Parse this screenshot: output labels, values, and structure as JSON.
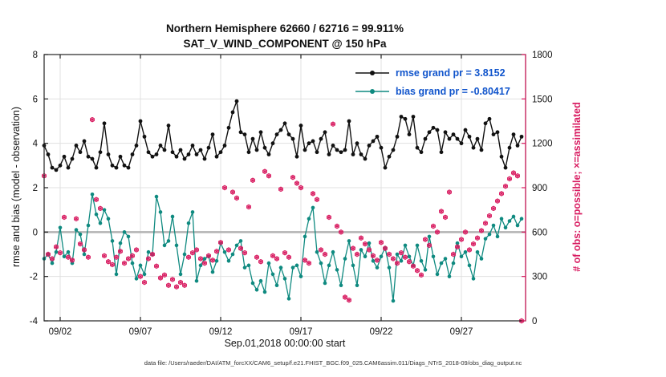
{
  "figure": {
    "title_line1": "Northern Hemisphere 62660 / 62716 = 99.911%",
    "title_line2": "SAT_V_WIND_COMPONENT @ 150 hPa",
    "xlabel": "Sep.01,2018 00:00:00 start",
    "ylabel_left": "rmse and bias (model - observation)",
    "ylabel_right": "# of obs: o=possible; ×=assimilated",
    "footer": "data file: /Users/raeder/DAI/ATM_forcXX/CAM6_setup/f.e21.FHIST_BGC.f09_025.CAM6assim.011/Diags_NTrS_2018-09/obs_diag_output.nc"
  },
  "legend": {
    "rmse_label": "rmse grand pr = 3.8152",
    "bias_label": "bias grand pr = -0.80417",
    "text_color": "#1155cc"
  },
  "colors": {
    "rmse": "#111111",
    "bias": "#0f8a80",
    "obs": "#d81b60",
    "grid": "#e0e0e0",
    "zero_line": "#b3b3b3",
    "axis": "#222222"
  },
  "chart_data": {
    "type": "line",
    "title": "Northern Hemisphere 62660 / 62716 = 99.911% | SAT_V_WIND_COMPONENT @ 150 hPa",
    "stats": {
      "possible": 62716,
      "assimilated": 62660,
      "percent_assimilated": 99.911,
      "rmse_grand_mean": 3.8152,
      "bias_grand_mean": -0.80417
    },
    "x_start": "Sep 1, 2018 00:00",
    "x_step_hours": 6,
    "x_axis": {
      "range_days": [
        0,
        30
      ],
      "tick_days": [
        1,
        6,
        11,
        16,
        21,
        26
      ],
      "tick_labels": [
        "09/02",
        "09/07",
        "09/12",
        "09/17",
        "09/22",
        "09/27"
      ]
    },
    "y_left": {
      "label": "rmse and bias (model - observation)",
      "range": [
        -4,
        8
      ],
      "ticks": [
        -4,
        -2,
        0,
        2,
        4,
        6,
        8
      ]
    },
    "y_right": {
      "label": "# of obs: o=possible; ×=assimilated",
      "range": [
        0,
        1800
      ],
      "ticks": [
        0,
        300,
        600,
        900,
        1200,
        1500,
        1800
      ]
    },
    "series": [
      {
        "name": "rmse",
        "axis": "left",
        "values": [
          3.9,
          3.5,
          2.9,
          2.8,
          3.0,
          3.4,
          2.9,
          3.3,
          3.9,
          3.6,
          4.1,
          3.4,
          3.3,
          2.9,
          3.6,
          4.9,
          3.5,
          3.0,
          2.9,
          3.4,
          3.0,
          2.9,
          3.5,
          3.9,
          5.0,
          4.3,
          3.6,
          3.4,
          3.5,
          3.9,
          3.7,
          4.8,
          3.6,
          3.4,
          3.7,
          3.3,
          3.5,
          3.9,
          3.5,
          3.7,
          3.3,
          3.8,
          4.4,
          3.4,
          3.6,
          3.9,
          4.7,
          5.4,
          5.9,
          4.5,
          4.4,
          3.6,
          4.2,
          3.7,
          4.5,
          3.8,
          3.5,
          4.0,
          4.4,
          4.6,
          4.9,
          4.4,
          4.2,
          3.4,
          4.8,
          3.7,
          4.0,
          4.1,
          3.6,
          4.2,
          4.5,
          3.5,
          3.9,
          3.7,
          3.6,
          3.7,
          5.0,
          3.5,
          4.0,
          3.5,
          3.3,
          3.9,
          4.1,
          4.3,
          3.8,
          2.9,
          3.4,
          3.7,
          4.3,
          5.2,
          5.1,
          4.4,
          5.2,
          3.8,
          3.6,
          4.2,
          4.5,
          4.7,
          4.6,
          3.6,
          4.5,
          4.2,
          4.4,
          4.2,
          4.0,
          4.6,
          4.3,
          3.8,
          4.2,
          3.7,
          4.9,
          5.1,
          4.4,
          4.5,
          3.4,
          2.9,
          3.8,
          4.4,
          3.9,
          4.3
        ]
      },
      {
        "name": "bias",
        "axis": "left",
        "values": [
          -1.2,
          -1.0,
          -1.4,
          -0.9,
          0.2,
          -1.1,
          -0.9,
          -1.4,
          0.1,
          -0.1,
          -1.0,
          0.3,
          1.7,
          0.8,
          0.4,
          1.0,
          0.6,
          -0.4,
          -1.9,
          -0.5,
          0.0,
          -0.2,
          -1.4,
          -2.1,
          -1.5,
          -1.9,
          -0.9,
          -1.0,
          1.6,
          0.9,
          -0.6,
          -0.4,
          0.7,
          -0.6,
          -1.9,
          -1.0,
          0.4,
          0.9,
          -2.2,
          -1.5,
          -1.2,
          -1.1,
          -1.8,
          -1.3,
          -0.5,
          -0.9,
          -1.3,
          -1.0,
          -0.6,
          -0.4,
          -1.6,
          -1.5,
          -2.3,
          -2.6,
          -2.2,
          -2.7,
          -1.4,
          -1.9,
          -2.4,
          -1.6,
          -2.1,
          -3.0,
          -1.6,
          -1.5,
          -2.0,
          -0.2,
          0.6,
          1.1,
          -0.9,
          -1.4,
          -2.3,
          -1.5,
          -0.9,
          -1.7,
          -2.4,
          -1.2,
          -0.4,
          -1.5,
          -2.4,
          -0.8,
          -1.1,
          -0.5,
          -1.3,
          -1.6,
          -1.1,
          -0.7,
          -1.6,
          -3.1,
          -1.0,
          -1.3,
          -0.6,
          -1.1,
          -1.5,
          -0.6,
          -1.3,
          -1.7,
          -0.2,
          -1.1,
          -1.9,
          -1.4,
          -1.2,
          -2.0,
          -1.4,
          -0.5,
          -1.1,
          -0.9,
          -1.5,
          -2.1,
          -0.9,
          -1.2,
          -0.3,
          -0.1,
          0.3,
          -0.2,
          0.6,
          0.2,
          0.5,
          0.7,
          0.3,
          0.6
        ]
      },
      {
        "name": "obs_count",
        "axis": "right",
        "marker": "circle+asterisk",
        "values": [
          980,
          450,
          420,
          500,
          460,
          700,
          430,
          410,
          690,
          520,
          480,
          430,
          1360,
          820,
          760,
          440,
          400,
          380,
          430,
          470,
          390,
          420,
          440,
          480,
          300,
          260,
          420,
          450,
          370,
          290,
          310,
          240,
          280,
          230,
          260,
          240,
          430,
          460,
          480,
          420,
          390,
          440,
          410,
          470,
          530,
          900,
          480,
          870,
          830,
          490,
          460,
          770,
          950,
          430,
          400,
          1010,
          980,
          440,
          420,
          890,
          460,
          430,
          970,
          930,
          900,
          410,
          390,
          860,
          820,
          480,
          450,
          700,
          1330,
          640,
          600,
          160,
          140,
          490,
          450,
          560,
          520,
          480,
          440,
          410,
          530,
          490,
          450,
          420,
          390,
          460,
          430,
          400,
          370,
          340,
          310,
          550,
          510,
          640,
          600,
          740,
          700,
          870,
          450,
          500,
          550,
          600,
          480,
          520,
          560,
          610,
          660,
          710,
          760,
          810,
          860,
          910,
          960,
          1000,
          980,
          0
        ]
      }
    ]
  }
}
